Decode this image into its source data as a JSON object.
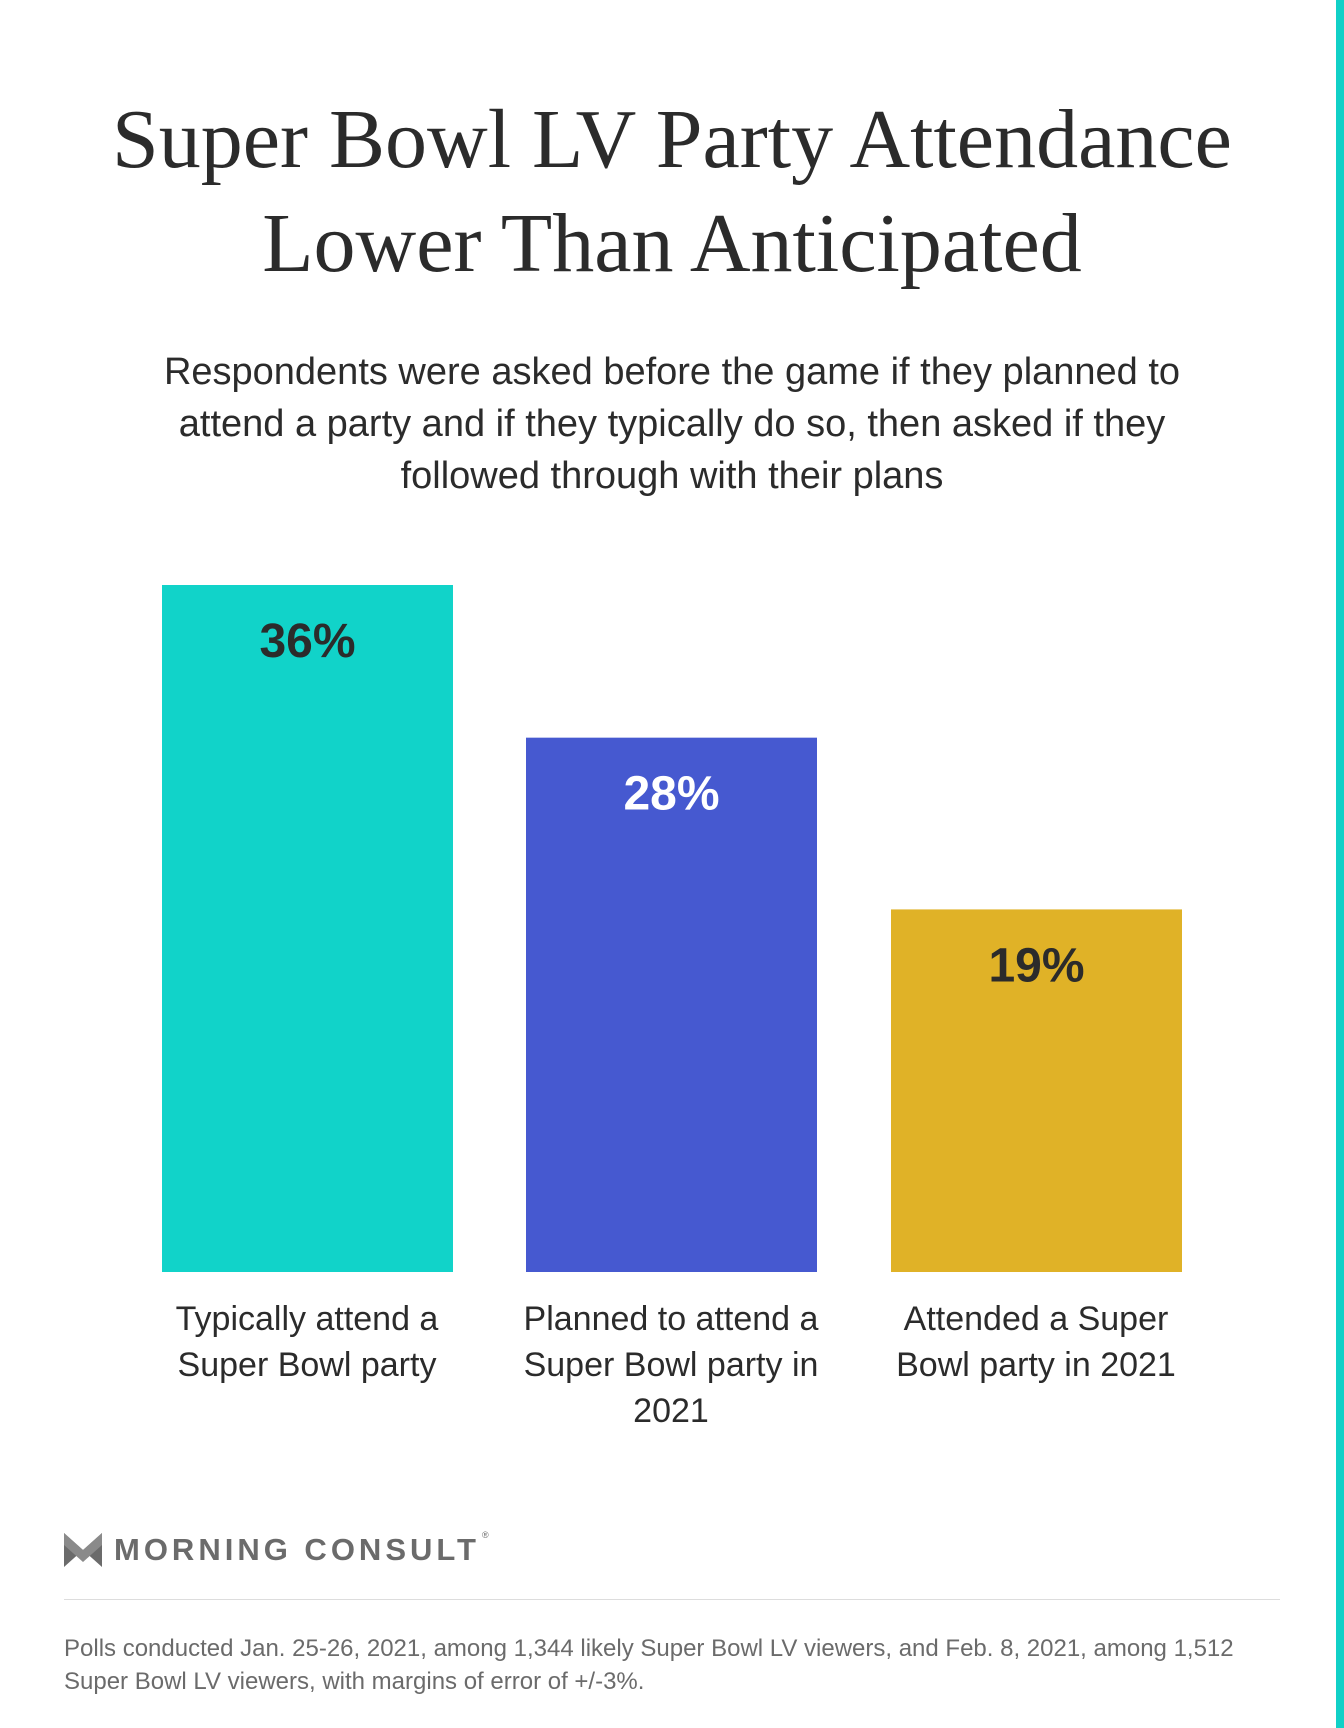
{
  "chart_data": {
    "type": "bar",
    "title": "Super Bowl LV Party Attendance Lower Than Anticipated",
    "subtitle": "Respondents were asked before the game if they planned to attend a party and if they typically do so, then asked if they followed through with their plans",
    "categories": [
      "Typically attend a Super Bowl party",
      "Planned to attend a Super Bowl party in 2021",
      "Attended a Super Bowl party in 2021"
    ],
    "values": [
      36,
      28,
      19
    ],
    "value_labels": [
      "36%",
      "28%",
      "19%"
    ],
    "bar_colors": [
      "#11d3c9",
      "#4659d0",
      "#e0b227"
    ],
    "label_colors": [
      "#2b2b2b",
      "#ffffff",
      "#2b2b2b"
    ],
    "ylim": [
      0,
      36
    ],
    "grid": false,
    "legend": "none"
  },
  "brand": {
    "name": "MORNING CONSULT",
    "reg_mark": "®",
    "accent_color": "#11d0c7",
    "logo_icon": "chevron-m-icon"
  },
  "footnote": "Polls conducted Jan. 25-26, 2021, among 1,344 likely Super Bowl LV viewers, and Feb. 8, 2021, among 1,512 Super Bowl LV viewers, with margins of error of +/-3%."
}
